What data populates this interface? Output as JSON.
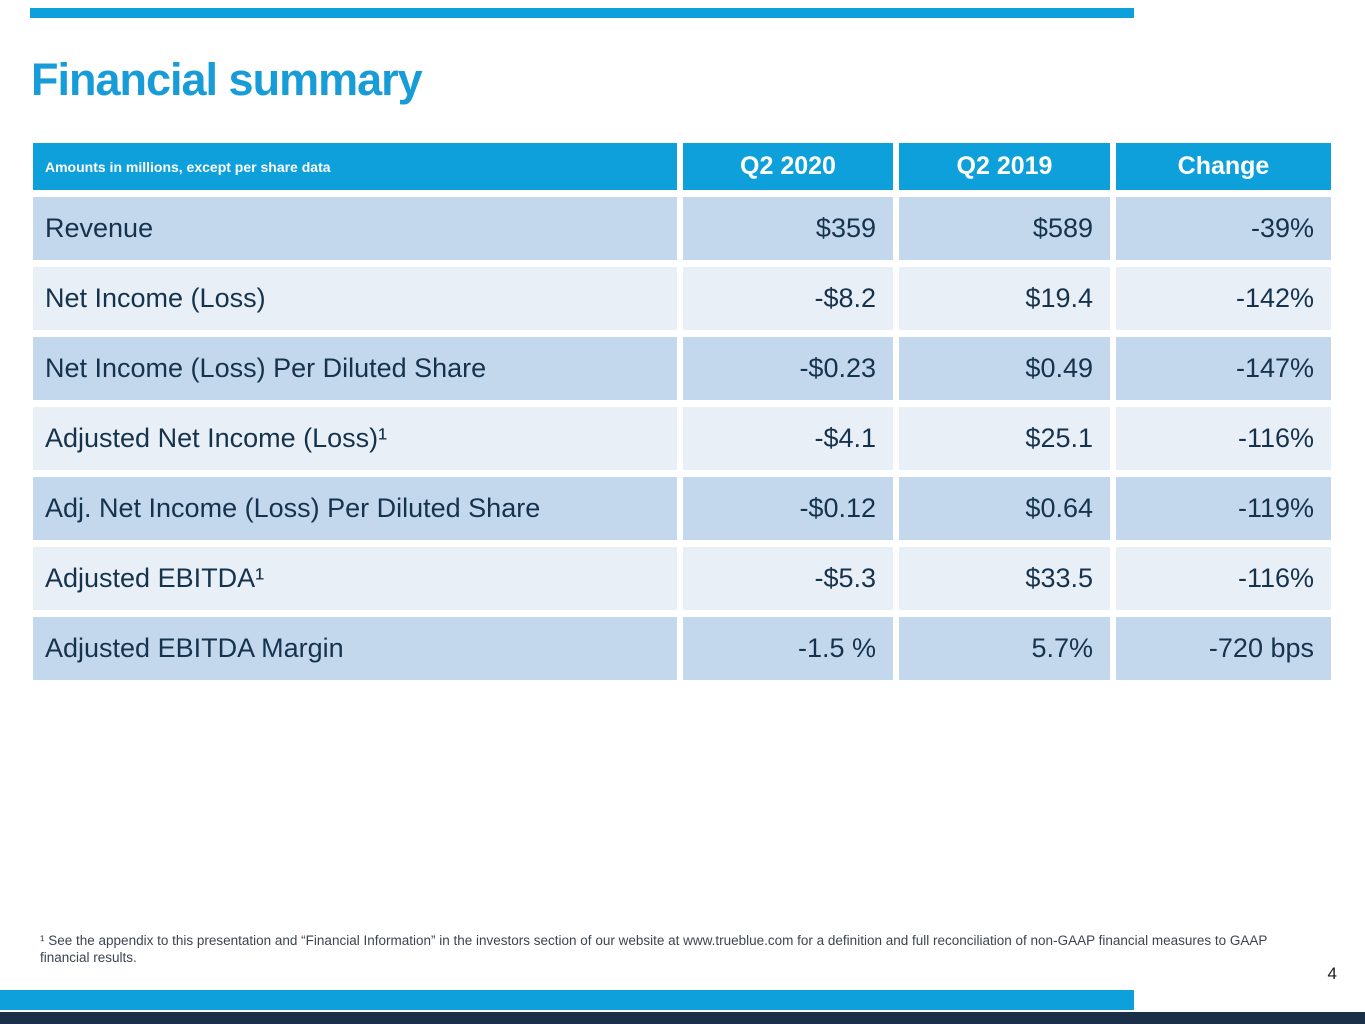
{
  "slide": {
    "title": "Financial summary",
    "page_number": "4",
    "footnote": "¹ See the appendix to this presentation and “Financial Information” in the investors section of our website at www.trueblue.com for a definition and full reconciliation of non-GAAP financial measures to GAAP financial results."
  },
  "table": {
    "caption": "Amounts in millions, except per share data",
    "columns": [
      "Q2 2020",
      "Q2 2019",
      "Change"
    ],
    "rows": [
      {
        "label": "Revenue",
        "q2_2020": "$359",
        "q2_2019": "$589",
        "change": "-39%"
      },
      {
        "label": "Net Income (Loss)",
        "q2_2020": "-$8.2",
        "q2_2019": "$19.4",
        "change": "-142%"
      },
      {
        "label": "Net Income (Loss) Per Diluted Share",
        "q2_2020": "-$0.23",
        "q2_2019": "$0.49",
        "change": "-147%"
      },
      {
        "label": "Adjusted Net Income (Loss)¹",
        "q2_2020": "-$4.1",
        "q2_2019": "$25.1",
        "change": "-116%"
      },
      {
        "label": "Adj. Net Income (Loss) Per Diluted Share",
        "q2_2020": "-$0.12",
        "q2_2019": "$0.64",
        "change": "-119%"
      },
      {
        "label": "Adjusted EBITDA¹",
        "q2_2020": "-$5.3",
        "q2_2019": "$33.5",
        "change": "-116%"
      },
      {
        "label": "Adjusted EBITDA Margin",
        "q2_2020": "-1.5 %",
        "q2_2019": "5.7%",
        "change": "-720 bps"
      }
    ]
  },
  "colors": {
    "accent_cyan": "#0da0db",
    "title_cyan": "#189cd8",
    "row_dark": "#c3d8ed",
    "row_light": "#e9eff7",
    "text_navy": "#16334d",
    "footer_navy": "#1a3049"
  }
}
